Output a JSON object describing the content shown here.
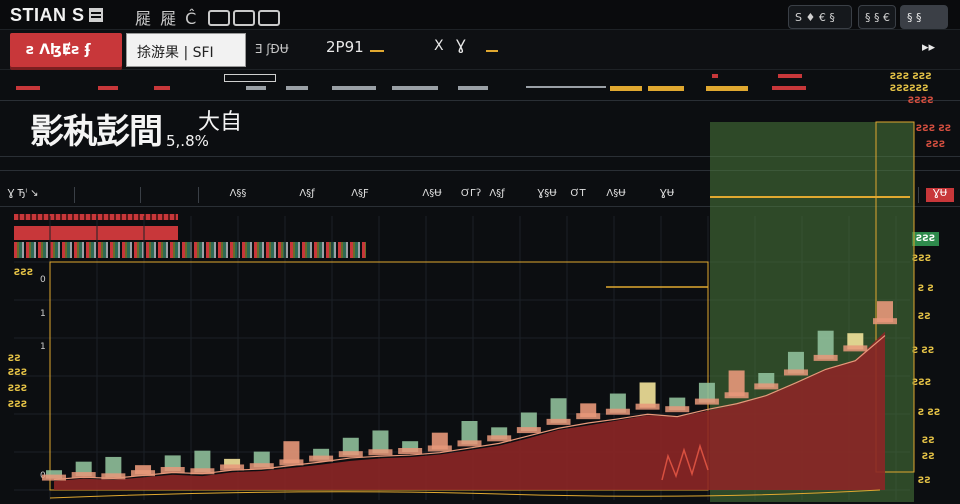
{
  "header": {
    "app_title": "STIAN S",
    "toolbar_glyphs": "屣 屣 Ĉ",
    "badge_a": "S ♦ € §",
    "badge_b": "§ § €",
    "badge_c": "§ §"
  },
  "symbol_bar": {
    "sell_label": "ƨ ɅɮɆƨ ʄ",
    "symbol_value": "捈游果 | SFI",
    "symbol_code": "Ǝ ʃƉɄ",
    "price": "2P91",
    "change_symbol": "Х Ɣ"
  },
  "headline": {
    "title": "影秇彭間",
    "value": "大自",
    "percent": "5,.8%"
  },
  "tabs": [
    "Ɣ Ђˡ ↘",
    "Ʌ§§",
    "Ʌ§ƒ",
    "Ʌ§Ƒ",
    "Ʌ§Ʉ",
    "ƠГʔ",
    "Ʌ§ƒ",
    "Ɣ§Ʉ",
    "ƠТ",
    "Ʌ§Ʉ",
    "ƔɄ",
    "ƔɄ"
  ],
  "side_tags_right": [
    "ƧƧƧ ƧƧƧ",
    "ƧƧƧƧƧƧ",
    "ƧƧƧƧ",
    "ƧƧƧ ƧƧ",
    "ƧƧƧ",
    "ƧƧƧ",
    "ƧƧƧ",
    "Ƨ Ƨ",
    "ƧƧ",
    "Ƨ ƧƧ",
    "ƧƧƧ",
    "Ƨ ƧƧ",
    "ƧƧ",
    "ƧƧ",
    "ƧƧ"
  ],
  "side_tags_left": [
    "ƧƧƧ",
    "ƧƧ",
    "ƧƧƧ",
    "ƧƧƧ",
    "ƧƧƧ"
  ],
  "colors": {
    "bull": "#8fbf9a",
    "bear": "#e8987a",
    "highlight": "#f2e29a",
    "band_green": "#4a7a3c",
    "band_red": "#8c2626",
    "accent": "#e0a830"
  },
  "chart_data": {
    "type": "bar",
    "title": "",
    "xlabel": "",
    "ylabel": "",
    "y_tick_labels": [
      "0",
      "1",
      "1",
      "0"
    ],
    "series": [
      {
        "values": [
          0.18,
          0.22,
          0.2,
          0.25,
          0.3,
          0.28,
          0.34,
          0.36,
          0.42,
          0.48,
          0.55,
          0.58,
          0.6,
          0.64,
          0.72,
          0.8,
          0.93,
          1.06,
          1.15,
          1.22,
          1.3,
          1.26,
          1.38,
          1.48,
          1.62,
          1.84,
          2.07,
          2.22,
          2.65
        ]
      },
      {
        "values": [
          0.14,
          0.18,
          0.16,
          0.2,
          0.24,
          0.22,
          0.28,
          0.3,
          0.35,
          0.4,
          0.46,
          0.5,
          0.52,
          0.56,
          0.63,
          0.7,
          0.82,
          0.95,
          1.02,
          1.1,
          1.18,
          1.15,
          1.25,
          1.35,
          1.48,
          1.68,
          1.9,
          2.05,
          2.5
        ]
      }
    ],
    "ylim": [
      0,
      3.6
    ],
    "grid": true
  }
}
